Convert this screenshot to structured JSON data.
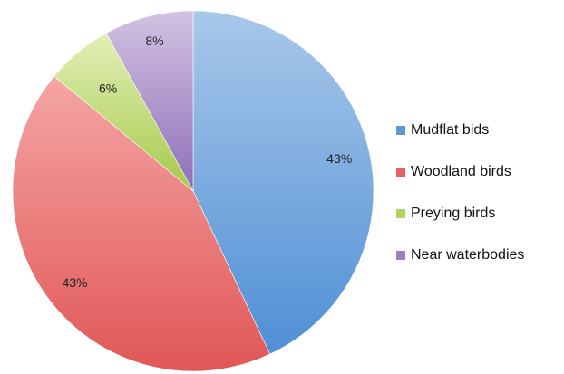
{
  "chart_data": {
    "type": "pie",
    "categories": [
      "Mudflat bids",
      "Woodland birds",
      "Preying birds",
      "Near waterbodies"
    ],
    "values": [
      43,
      43,
      6,
      8
    ],
    "labels": [
      "43%",
      "43%",
      "6%",
      "8%"
    ],
    "colors": {
      "Mudflat bids": {
        "light": "#a9c8ea",
        "dark": "#4f8fd5",
        "swatch": "#5b9bd5"
      },
      "Woodland birds": {
        "light": "#f4a6a4",
        "dark": "#e15757",
        "swatch": "#e8615f"
      },
      "Preying birds": {
        "light": "#e2efb8",
        "dark": "#a7c94a",
        "swatch": "#b3d25f"
      },
      "Near waterbodies": {
        "light": "#d2c2e2",
        "dark": "#8f6fb8",
        "swatch": "#9b7fc4"
      }
    },
    "start_angle_deg": 0,
    "direction": "clockwise",
    "legend_position": "right"
  }
}
